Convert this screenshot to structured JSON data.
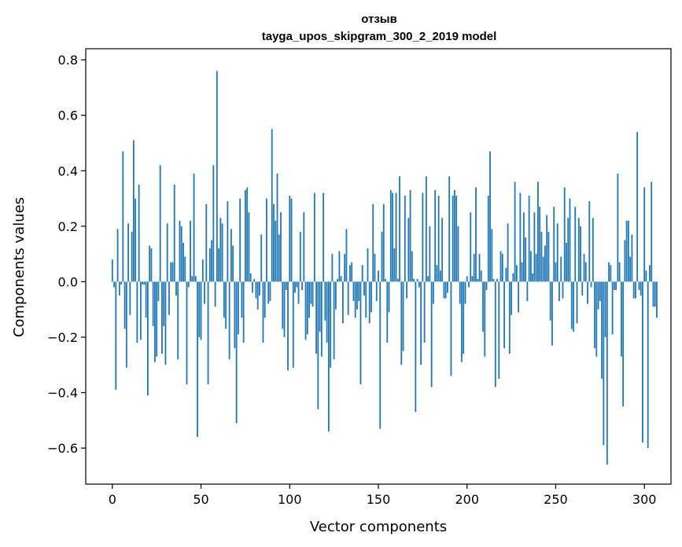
{
  "chart_data": {
    "type": "bar",
    "title": "отзыв",
    "subtitle": "tayga_upos_skipgram_300_2_2019 model",
    "xlabel": "Vector components",
    "ylabel": "Components values",
    "xlim": [
      -15,
      315
    ],
    "ylim": [
      -0.73,
      0.84
    ],
    "x_ticks": [
      0,
      50,
      100,
      150,
      200,
      250,
      300
    ],
    "x_tick_labels": [
      "0",
      "50",
      "100",
      "150",
      "200",
      "250",
      "300"
    ],
    "y_ticks": [
      -0.6,
      -0.4,
      -0.2,
      0.0,
      0.2,
      0.4,
      0.6,
      0.8
    ],
    "y_tick_labels": [
      "−0.6",
      "−0.4",
      "−0.2",
      "0.0",
      "0.2",
      "0.4",
      "0.6",
      "0.8"
    ],
    "bar_color": "#1f77b4",
    "grid": false,
    "values": [
      0.08,
      -0.02,
      -0.39,
      0.19,
      -0.05,
      -0.01,
      0.47,
      -0.17,
      -0.31,
      0.21,
      -0.12,
      0.18,
      0.51,
      0.3,
      -0.22,
      0.35,
      -0.21,
      -0.01,
      -0.01,
      -0.13,
      -0.41,
      0.13,
      0.12,
      -0.16,
      -0.29,
      -0.27,
      -0.07,
      0.42,
      -0.26,
      -0.16,
      -0.3,
      0.21,
      -0.12,
      0.07,
      0.07,
      0.35,
      -0.05,
      -0.28,
      0.22,
      0.2,
      0.14,
      0.09,
      -0.37,
      -0.02,
      0.22,
      0.02,
      0.39,
      0.02,
      -0.56,
      -0.2,
      -0.21,
      0.08,
      -0.08,
      0.28,
      -0.37,
      0.12,
      0.15,
      0.42,
      -0.09,
      0.76,
      0.12,
      0.23,
      0.21,
      -0.13,
      -0.17,
      0.29,
      -0.28,
      0.19,
      0.13,
      -0.24,
      -0.51,
      -0.19,
      0.3,
      -0.13,
      -0.22,
      0.33,
      0.34,
      0.25,
      0.03,
      -0.04,
      0.01,
      -0.06,
      -0.1,
      -0.05,
      0.17,
      -0.22,
      -0.13,
      0.3,
      -0.08,
      -0.07,
      0.55,
      0.28,
      0.22,
      0.39,
      0.17,
      0.25,
      -0.17,
      -0.2,
      -0.03,
      -0.32,
      0.31,
      0.3,
      -0.31,
      -0.04,
      -0.02,
      -0.08,
      0.18,
      -0.03,
      0.25,
      -0.21,
      -0.19,
      -0.13,
      -0.08,
      -0.09,
      0.32,
      -0.26,
      -0.46,
      -0.18,
      -0.27,
      0.32,
      -0.14,
      -0.22,
      -0.54,
      -0.31,
      0.1,
      -0.28,
      -0.1,
      0.01,
      0.11,
      0.02,
      -0.15,
      0.1,
      0.19,
      -0.12,
      0.06,
      0.07,
      -0.07,
      -0.13,
      -0.1,
      -0.07,
      -0.37,
      0.06,
      -0.05,
      -0.13,
      0.12,
      -0.15,
      -0.11,
      0.28,
      0.1,
      -0.07,
      0.04,
      -0.53,
      0.18,
      0.28,
      0.01,
      -0.22,
      -0.11,
      0.33,
      0.32,
      0.12,
      0.32,
      0.01,
      0.38,
      -0.3,
      -0.25,
      0.31,
      -0.06,
      0.23,
      0.33,
      0.11,
      0.01,
      -0.47,
      0.01,
      -0.02,
      -0.3,
      0.32,
      -0.22,
      0.38,
      0.02,
      0.2,
      -0.38,
      -0.08,
      0.33,
      0.06,
      0.31,
      0.04,
      0.23,
      -0.06,
      -0.06,
      -0.04,
      0.38,
      -0.34,
      0.31,
      0.33,
      0.31,
      0.2,
      -0.08,
      -0.29,
      -0.26,
      -0.08,
      0.02,
      -0.02,
      0.25,
      0.02,
      0.1,
      0.34,
      0.01,
      0.1,
      0.04,
      -0.18,
      -0.27,
      -0.03,
      0.31,
      0.47,
      0.19,
      0.01,
      -0.38,
      0.01,
      -0.35,
      0.11,
      0.1,
      -0.24,
      0.05,
      0.21,
      -0.26,
      -0.12,
      0.03,
      0.36,
      0.06,
      -0.11,
      0.32,
      0.07,
      0.25,
      0.16,
      -0.07,
      0.31,
      0.11,
      0.03,
      0.25,
      0.1,
      0.36,
      0.27,
      0.18,
      0.09,
      0.13,
      0.24,
      0.18,
      -0.14,
      -0.23,
      0.27,
      0.07,
      0.21,
      -0.07,
      0.09,
      -0.06,
      0.34,
      0.14,
      0.23,
      0.3,
      -0.17,
      -0.18,
      0.27,
      -0.15,
      0.23,
      0.2,
      -0.05,
      0.1,
      0.07,
      -0.08,
      0.29,
      -0.02,
      0.23,
      -0.24,
      -0.27,
      -0.1,
      -0.07,
      -0.35,
      -0.59,
      -0.2,
      -0.66,
      0.07,
      0.06,
      -0.19,
      -0.03,
      -0.03,
      0.39,
      0.07,
      -0.27,
      -0.45,
      0.15,
      0.22,
      0.22,
      0.09,
      0.17,
      -0.06,
      -0.06,
      0.54,
      -0.03,
      -0.05,
      -0.58,
      0.34,
      0.04,
      -0.6,
      0.06,
      0.36,
      -0.09,
      -0.09,
      -0.13
    ]
  }
}
